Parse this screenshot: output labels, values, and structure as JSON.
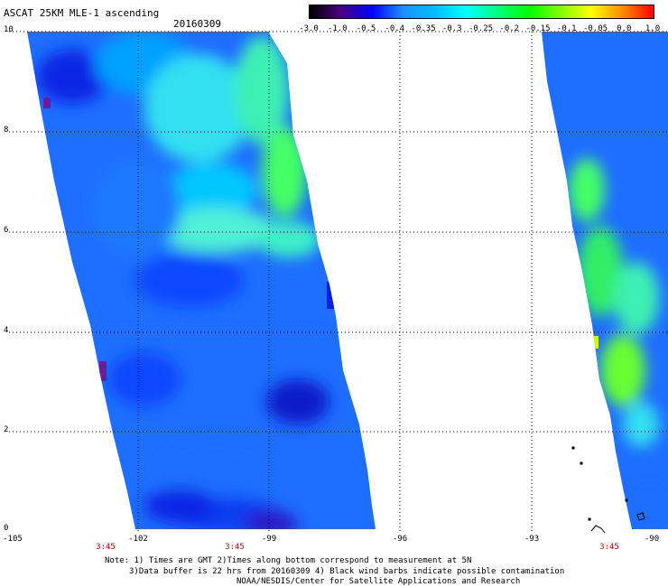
{
  "header": {
    "title": "ASCAT 25KM MLE-1 ascending",
    "date": "20160309"
  },
  "colorbar": {
    "tick_labels": [
      "-3.0",
      "-1.0",
      "-0.5",
      "-0.4",
      "-0.35",
      "-0.3",
      "-0.25",
      "-0.2",
      "-0.15",
      "-0.1",
      "-0.05",
      "0.0",
      "1.0"
    ],
    "colors": [
      "#000000",
      "#4b0082",
      "#0000ff",
      "#1e90ff",
      "#00bfff",
      "#00ffff",
      "#00ff7f",
      "#00ff00",
      "#7fff00",
      "#ffff00",
      "#ff8c00",
      "#ff0000"
    ]
  },
  "axes": {
    "y_labels": [
      "10",
      "8",
      "6",
      "4",
      "2",
      "0"
    ],
    "x_labels": [
      "-105",
      "-102",
      "-99",
      "-96",
      "-93",
      "-90"
    ],
    "time_labels": [
      "3:45",
      "3:45",
      "3:45"
    ]
  },
  "notes": {
    "line1": "Note: 1) Times are GMT 2)Times along bottom correspond to measurement at 5N",
    "line2": "3)Data buffer is 22 hrs from 20160309 4) Black wind barbs indicate possible contamination",
    "line3": "NOAA/NESDIS/Center for Satellite Applications and Research"
  }
}
